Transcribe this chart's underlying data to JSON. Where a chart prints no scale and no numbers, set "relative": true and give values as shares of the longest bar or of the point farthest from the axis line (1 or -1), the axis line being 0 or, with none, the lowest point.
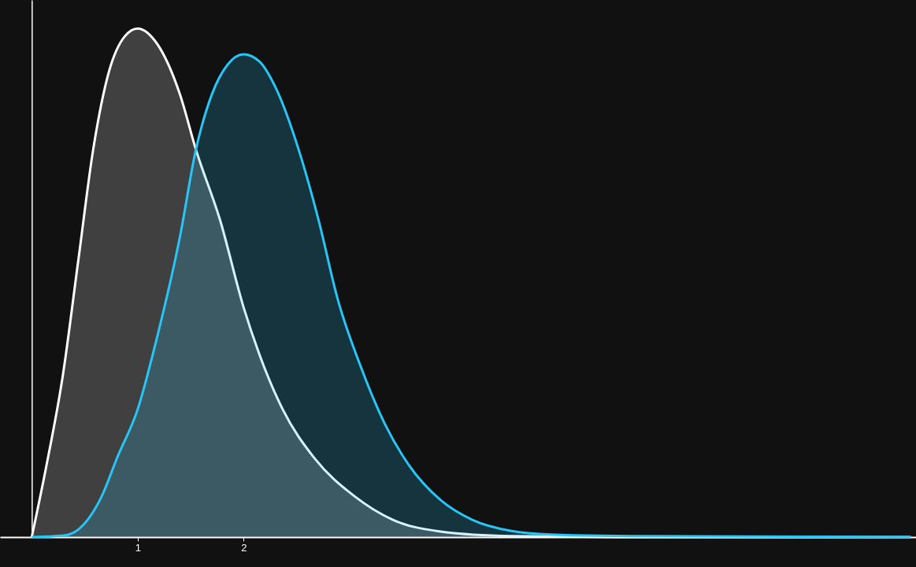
{
  "chart_data": {
    "type": "area",
    "relative": true,
    "xlim": [
      -0.3,
      8.35
    ],
    "xticks": [
      1,
      2
    ],
    "marker": "none",
    "line_style": "solid",
    "series": [
      {
        "color": "#ffffff",
        "x": [
          0,
          0.14,
          0.29,
          0.44,
          0.58,
          0.73,
          0.88,
          1,
          1.18,
          1.4,
          1.55,
          1.78,
          2,
          2.15,
          2.37,
          2.67,
          3.05,
          3.41,
          3.86,
          4.53,
          5.64,
          8.3
        ],
        "values": [
          0,
          0.142,
          0.313,
          0.545,
          0.762,
          0.916,
          0.985,
          1,
          0.971,
          0.87,
          0.762,
          0.622,
          0.452,
          0.359,
          0.251,
          0.155,
          0.08,
          0.034,
          0.011,
          0.002,
          0,
          0
        ]
      },
      {
        "color": "#29c5f6",
        "x": [
          0,
          0.3,
          0.44,
          0.66,
          0.81,
          1,
          1.18,
          1.4,
          1.55,
          1.7,
          1.85,
          2,
          2.15,
          2.3,
          2.52,
          2.71,
          2.89,
          3.12,
          3.34,
          3.56,
          3.86,
          4.16,
          4.53,
          4.9,
          5.64,
          8.3
        ],
        "values": [
          0,
          0.003,
          0.015,
          0.08,
          0.158,
          0.251,
          0.39,
          0.591,
          0.762,
          0.87,
          0.929,
          0.949,
          0.935,
          0.885,
          0.762,
          0.622,
          0.467,
          0.328,
          0.22,
          0.142,
          0.073,
          0.034,
          0.012,
          0.005,
          0.002,
          0
        ]
      }
    ]
  }
}
